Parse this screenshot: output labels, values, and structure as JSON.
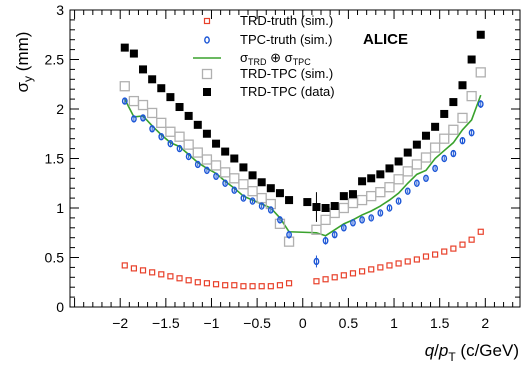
{
  "chart_data": {
    "type": "scatter",
    "title": "",
    "annotation": "ALICE",
    "xlabel": {
      "q": "q",
      "slash": "/",
      "p": "p",
      "T": "T",
      "unit": " (c/GeV)"
    },
    "ylabel": {
      "sigma": "σ",
      "sub": "y",
      "unit": " (mm)"
    },
    "xlim": [
      -2.55,
      2.38
    ],
    "ylim": [
      0,
      3
    ],
    "xticks": [
      -2,
      -1.5,
      -1,
      -0.5,
      0,
      0.5,
      1,
      1.5,
      2
    ],
    "xtick_labels": [
      "−2",
      "−1.5",
      "−1",
      "−0.5",
      "0",
      "0.5",
      "1",
      "1.5",
      "2"
    ],
    "yticks": [
      0,
      0.5,
      1,
      1.5,
      2,
      2.5,
      3
    ],
    "ytick_labels": [
      "0",
      "0.5",
      "1",
      "1.5",
      "2",
      "2.5",
      "3"
    ],
    "legend_position": "top-center",
    "legend": [
      {
        "key": "trd",
        "label": "TRD-truth (sim.)"
      },
      {
        "key": "tpc",
        "label": "TPC-truth (sim.)"
      },
      {
        "key": "comb",
        "label_parts": {
          "s1": "σ",
          "sub1": "TRD",
          "op": " ⊕ ",
          "s2": "σ",
          "sub2": "TPC"
        }
      },
      {
        "key": "sim",
        "label": "TRD-TPC (sim.)"
      },
      {
        "key": "data",
        "label": "TRD-TPC (data)"
      }
    ],
    "colors": {
      "trd": "#e8402a",
      "tpc": "#1c56d6",
      "comb": "#3aa22d",
      "sim": "#b0b0b0",
      "data": "#000000"
    },
    "x": [
      -1.95,
      -1.85,
      -1.75,
      -1.65,
      -1.55,
      -1.45,
      -1.35,
      -1.25,
      -1.15,
      -1.05,
      -0.95,
      -0.85,
      -0.75,
      -0.65,
      -0.55,
      -0.45,
      -0.35,
      -0.25,
      -0.15,
      0.15,
      0.25,
      0.35,
      0.45,
      0.55,
      0.65,
      0.75,
      0.85,
      0.95,
      1.05,
      1.15,
      1.25,
      1.35,
      1.45,
      1.55,
      1.65,
      1.75,
      1.85,
      1.95
    ],
    "series": [
      {
        "key": "trd",
        "name": "TRD-truth (sim.)",
        "marker": "open-square-small",
        "x": [
          -1.95,
          -1.85,
          -1.75,
          -1.65,
          -1.55,
          -1.45,
          -1.35,
          -1.25,
          -1.15,
          -1.05,
          -0.95,
          -0.85,
          -0.75,
          -0.65,
          -0.55,
          -0.45,
          -0.35,
          -0.25,
          -0.15,
          0.15,
          0.25,
          0.35,
          0.45,
          0.55,
          0.65,
          0.75,
          0.85,
          0.95,
          1.05,
          1.15,
          1.25,
          1.35,
          1.45,
          1.55,
          1.65,
          1.75,
          1.85,
          1.95
        ],
        "values": [
          0.42,
          0.39,
          0.37,
          0.35,
          0.33,
          0.31,
          0.29,
          0.27,
          0.25,
          0.24,
          0.23,
          0.22,
          0.22,
          0.21,
          0.21,
          0.21,
          0.21,
          0.22,
          0.24,
          0.26,
          0.28,
          0.3,
          0.32,
          0.34,
          0.36,
          0.38,
          0.4,
          0.42,
          0.44,
          0.46,
          0.48,
          0.51,
          0.53,
          0.56,
          0.59,
          0.63,
          0.68,
          0.76
        ]
      },
      {
        "key": "tpc",
        "name": "TPC-truth (sim.)",
        "marker": "open-circle-small",
        "x": [
          -1.95,
          -1.85,
          -1.75,
          -1.65,
          -1.55,
          -1.45,
          -1.35,
          -1.25,
          -1.15,
          -1.05,
          -0.95,
          -0.85,
          -0.75,
          -0.65,
          -0.55,
          -0.45,
          -0.35,
          -0.25,
          -0.15,
          0.15,
          0.25,
          0.35,
          0.45,
          0.55,
          0.65,
          0.75,
          0.85,
          0.95,
          1.05,
          1.15,
          1.25,
          1.35,
          1.45,
          1.55,
          1.65,
          1.75,
          1.85,
          1.95
        ],
        "values": [
          2.08,
          1.9,
          1.91,
          1.8,
          1.72,
          1.65,
          1.6,
          1.52,
          1.44,
          1.38,
          1.32,
          1.25,
          1.18,
          1.1,
          1.07,
          1.02,
          0.98,
          0.88,
          0.73,
          0.46,
          0.67,
          0.73,
          0.8,
          0.85,
          0.88,
          0.9,
          0.95,
          1.0,
          1.07,
          1.17,
          1.25,
          1.3,
          1.4,
          1.5,
          1.55,
          1.68,
          1.76,
          2.05
        ],
        "errors": [
          0.03,
          0.03,
          0.03,
          0.03,
          0.02,
          0.02,
          0.02,
          0.02,
          0.02,
          0.02,
          0.02,
          0.02,
          0.02,
          0.02,
          0.02,
          0.02,
          0.02,
          0.03,
          0.04,
          0.06,
          0.04,
          0.03,
          0.02,
          0.02,
          0.02,
          0.02,
          0.02,
          0.02,
          0.02,
          0.02,
          0.02,
          0.02,
          0.02,
          0.02,
          0.03,
          0.03,
          0.03,
          0.04
        ]
      },
      {
        "key": "comb",
        "name": "σTRD ⊕ σTPC",
        "marker": "line",
        "x": [
          -1.95,
          -1.85,
          -1.75,
          -1.65,
          -1.55,
          -1.45,
          -1.35,
          -1.25,
          -1.15,
          -1.05,
          -0.95,
          -0.85,
          -0.75,
          -0.65,
          -0.55,
          -0.45,
          -0.35,
          -0.25,
          -0.15,
          0.15,
          0.25,
          0.35,
          0.45,
          0.55,
          0.65,
          0.75,
          0.85,
          0.95,
          1.05,
          1.15,
          1.25,
          1.35,
          1.45,
          1.55,
          1.65,
          1.75,
          1.85,
          1.95
        ],
        "values": [
          2.1,
          1.92,
          1.93,
          1.83,
          1.74,
          1.66,
          1.62,
          1.54,
          1.46,
          1.4,
          1.35,
          1.27,
          1.2,
          1.12,
          1.08,
          1.04,
          1.0,
          0.9,
          0.76,
          0.75,
          0.72,
          0.78,
          0.84,
          0.88,
          0.93,
          0.97,
          1.02,
          1.08,
          1.15,
          1.25,
          1.34,
          1.38,
          1.5,
          1.58,
          1.66,
          1.79,
          1.89,
          2.14
        ]
      },
      {
        "key": "sim",
        "name": "TRD-TPC (sim.)",
        "marker": "open-square-large",
        "x": [
          -1.95,
          -1.85,
          -1.75,
          -1.65,
          -1.55,
          -1.45,
          -1.35,
          -1.25,
          -1.15,
          -1.05,
          -0.95,
          -0.85,
          -0.75,
          -0.65,
          -0.55,
          -0.45,
          -0.35,
          -0.25,
          -0.15,
          0.15,
          0.25,
          0.35,
          0.45,
          0.55,
          0.65,
          0.75,
          0.85,
          0.95,
          1.05,
          1.15,
          1.25,
          1.35,
          1.45,
          1.55,
          1.65,
          1.75,
          1.85,
          1.95
        ],
        "values": [
          2.23,
          2.08,
          2.04,
          1.96,
          1.86,
          1.77,
          1.72,
          1.64,
          1.56,
          1.49,
          1.43,
          1.36,
          1.3,
          1.24,
          1.17,
          1.1,
          1.04,
          0.84,
          0.66,
          0.78,
          0.88,
          0.95,
          1.0,
          1.05,
          1.08,
          1.12,
          1.16,
          1.21,
          1.29,
          1.37,
          1.44,
          1.51,
          1.61,
          1.7,
          1.79,
          1.91,
          2.13,
          2.37
        ]
      },
      {
        "key": "data",
        "name": "TRD-TPC (data)",
        "marker": "filled-square",
        "x": [
          -1.95,
          -1.85,
          -1.75,
          -1.65,
          -1.55,
          -1.45,
          -1.35,
          -1.25,
          -1.15,
          -1.05,
          -0.95,
          -0.85,
          -0.75,
          -0.65,
          -0.55,
          -0.45,
          -0.35,
          -0.25,
          -0.15,
          0.05,
          0.15,
          0.25,
          0.35,
          0.45,
          0.55,
          0.65,
          0.75,
          0.85,
          0.95,
          1.05,
          1.15,
          1.25,
          1.35,
          1.45,
          1.55,
          1.65,
          1.75,
          1.85,
          1.95
        ],
        "values": [
          2.62,
          2.56,
          2.4,
          2.3,
          2.21,
          2.12,
          2.02,
          1.93,
          1.84,
          1.75,
          1.65,
          1.57,
          1.5,
          1.41,
          1.33,
          1.26,
          1.2,
          1.15,
          1.08,
          1.06,
          1.01,
          1.0,
          1.02,
          1.12,
          1.14,
          1.27,
          1.3,
          1.34,
          1.4,
          1.47,
          1.56,
          1.64,
          1.73,
          1.82,
          1.95,
          2.07,
          2.24,
          2.5,
          2.75
        ],
        "errors": [
          0.02,
          0.02,
          0.02,
          0.02,
          0.02,
          0.02,
          0.02,
          0.02,
          0.02,
          0.02,
          0.02,
          0.02,
          0.02,
          0.02,
          0.02,
          0.02,
          0.02,
          0.02,
          0.02,
          0.02,
          0.15,
          0.03,
          0.02,
          0.02,
          0.02,
          0.02,
          0.02,
          0.02,
          0.02,
          0.02,
          0.02,
          0.02,
          0.02,
          0.02,
          0.02,
          0.02,
          0.02,
          0.02,
          0.03
        ]
      }
    ]
  }
}
